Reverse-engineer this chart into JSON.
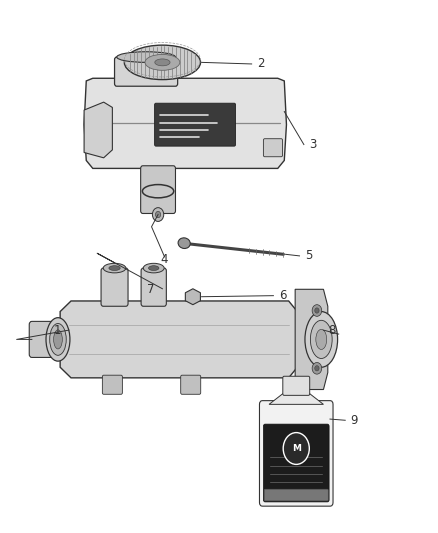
{
  "background_color": "#ffffff",
  "fig_width": 4.38,
  "fig_height": 5.33,
  "dpi": 100,
  "line_color": "#333333",
  "text_color": "#333333",
  "label_fontsize": 8.5,
  "parts_positions": {
    "2_line": [
      [
        0.47,
        0.89
      ],
      [
        0.6,
        0.885
      ]
    ],
    "3_line": [
      [
        0.65,
        0.735
      ],
      [
        0.72,
        0.725
      ]
    ],
    "4_line": [
      [
        0.4,
        0.545
      ],
      [
        0.4,
        0.536
      ]
    ],
    "5_line": [
      [
        0.62,
        0.535
      ],
      [
        0.7,
        0.528
      ]
    ],
    "6_line": [
      [
        0.575,
        0.445
      ],
      [
        0.635,
        0.44
      ]
    ],
    "7_line": [
      [
        0.37,
        0.455
      ],
      [
        0.41,
        0.46
      ]
    ],
    "1_line": [
      [
        0.185,
        0.375
      ],
      [
        0.155,
        0.368
      ]
    ],
    "8_line": [
      [
        0.7,
        0.375
      ],
      [
        0.745,
        0.37
      ]
    ],
    "9_line": [
      [
        0.755,
        0.195
      ],
      [
        0.805,
        0.185
      ]
    ]
  }
}
